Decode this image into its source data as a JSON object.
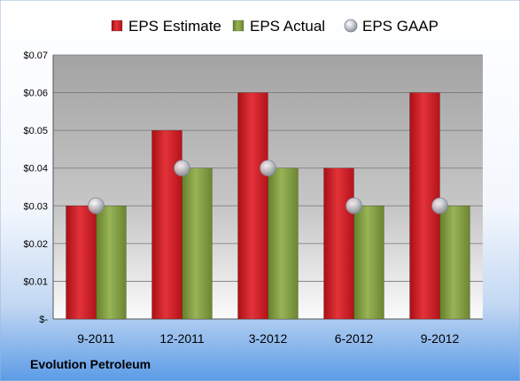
{
  "chart_data": {
    "type": "bar",
    "categories": [
      "9-2011",
      "12-2011",
      "3-2012",
      "6-2012",
      "9-2012"
    ],
    "series": [
      {
        "name": "EPS Estimate",
        "type": "bar",
        "color": "#C8191F",
        "values": [
          0.03,
          0.05,
          0.06,
          0.04,
          0.06
        ]
      },
      {
        "name": "EPS Actual",
        "type": "bar",
        "color": "#7E9A3E",
        "values": [
          0.03,
          0.04,
          0.04,
          0.03,
          0.03
        ]
      },
      {
        "name": "EPS GAAP",
        "type": "marker",
        "color": "#B8BDC6",
        "values": [
          0.03,
          0.04,
          0.04,
          0.03,
          0.03
        ]
      }
    ],
    "ylim": [
      0,
      0.07
    ],
    "yticks": [
      0,
      0.01,
      0.02,
      0.03,
      0.04,
      0.05,
      0.06,
      0.07
    ],
    "ytick_labels": [
      "$-",
      "$0.01",
      "$0.02",
      "$0.03",
      "$0.04",
      "$0.05",
      "$0.06",
      "$0.07"
    ],
    "grid": true,
    "legend_position": "top-center",
    "company_label": "Evolution Petroleum"
  }
}
